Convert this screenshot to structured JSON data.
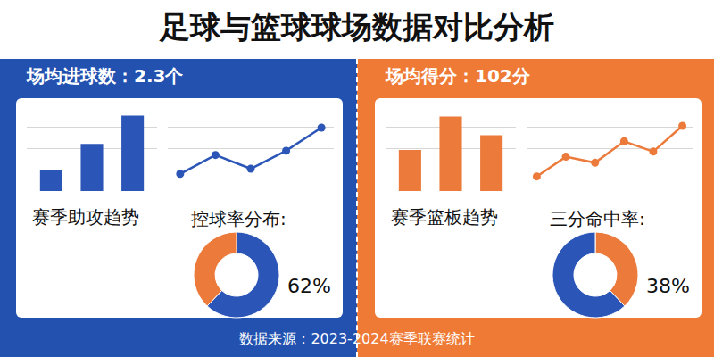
{
  "title": "足球与篮球球场数据对比分析",
  "source": "数据来源：2023-2024赛季联赛统计",
  "panels": [
    {
      "header": "场均进球数：2.3个"
    },
    {
      "header": "场均得分：102分"
    }
  ],
  "chart_data": [
    {
      "type": "bar",
      "title": "赛季助攻趋势",
      "categories": [
        null,
        null,
        null
      ],
      "values": [
        25,
        55,
        88
      ],
      "color": "#2b56b8",
      "ylim": [
        0,
        100
      ],
      "yticks": [
        0,
        25,
        50,
        75,
        100
      ],
      "grid": true,
      "tick_labels": false
    },
    {
      "type": "line",
      "categories": [
        null,
        null,
        null,
        null,
        null
      ],
      "values": [
        20,
        42,
        26,
        47,
        74
      ],
      "color": "#2b56b8",
      "marker": "circle",
      "ylim": [
        0,
        100
      ],
      "yticks": [
        0,
        25,
        50,
        75,
        100
      ],
      "grid": true,
      "tick_labels": false
    },
    {
      "type": "pie",
      "title": "控球率分布:",
      "categories": [
        null,
        null
      ],
      "values": [
        62,
        38
      ],
      "value_labels": [
        "62%",
        null
      ],
      "colors": [
        "#2b56b8",
        "#ec7a3a"
      ]
    },
    {
      "type": "bar",
      "title": "赛季篮板趋势",
      "categories": [
        null,
        null,
        null
      ],
      "values": [
        48,
        87,
        65
      ],
      "color": "#ec7a3a",
      "ylim": [
        0,
        100
      ],
      "yticks": [
        0,
        25,
        50,
        75,
        100
      ],
      "grid": true,
      "tick_labels": false
    },
    {
      "type": "line",
      "categories": [
        null,
        null,
        null,
        null,
        null,
        null
      ],
      "values": [
        17,
        40,
        33,
        58,
        46,
        76
      ],
      "color": "#ec7a3a",
      "marker": "circle",
      "ylim": [
        0,
        100
      ],
      "yticks": [
        0,
        25,
        50,
        75,
        100
      ],
      "grid": true,
      "tick_labels": false
    },
    {
      "type": "pie",
      "title": "三分命中率:",
      "categories": [
        null,
        null
      ],
      "values": [
        38,
        62
      ],
      "value_labels": [
        "38%",
        null
      ],
      "colors": [
        "#ec7a3a",
        "#2b56b8"
      ]
    }
  ]
}
